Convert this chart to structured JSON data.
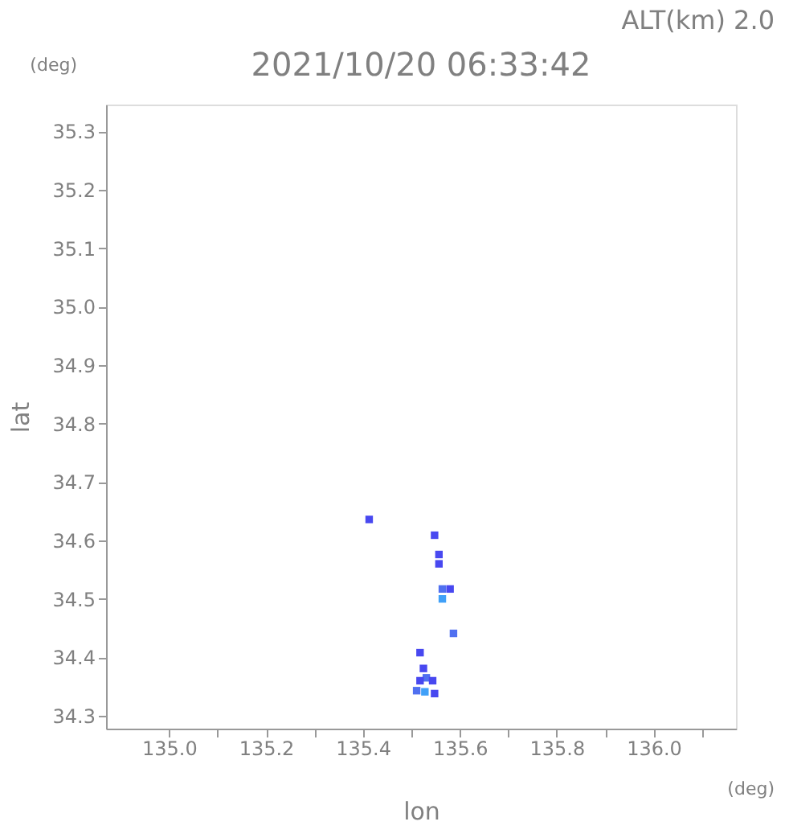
{
  "chart_data": {
    "type": "scatter",
    "title": "2021/10/20 06:33:42",
    "xlabel": "lon",
    "ylabel": "lat",
    "annotations": [
      "ALT(km) 2.0",
      "(deg)",
      "(deg)"
    ],
    "x": [
      135.413,
      135.548,
      135.557,
      135.557,
      135.564,
      135.58,
      135.564,
      135.587,
      135.518,
      135.525,
      135.531,
      135.518,
      135.544,
      135.511,
      135.528,
      135.548
    ],
    "values": [
      34.636,
      34.609,
      34.576,
      34.56,
      34.517,
      34.517,
      34.5,
      34.441,
      34.408,
      34.381,
      34.365,
      34.36,
      34.36,
      34.343,
      34.341,
      34.338
    ],
    "colors": [
      "#4848f0",
      "#4848f0",
      "#4848f0",
      "#4848f0",
      "#5070f0",
      "#4848f0",
      "#40a0f8",
      "#5070f0",
      "#4848f0",
      "#4848f0",
      "#5070f0",
      "#4848f0",
      "#4848f0",
      "#5070f0",
      "#40a0f8",
      "#4848f0"
    ],
    "marker": "square",
    "xlim": [
      134.87,
      136.17
    ],
    "ylim": [
      34.278,
      35.346
    ],
    "xticks": [
      {
        "value": 135.0,
        "label": "135.0"
      },
      {
        "value": 135.1,
        "label": null
      },
      {
        "value": 135.2,
        "label": "135.2"
      },
      {
        "value": 135.3,
        "label": null
      },
      {
        "value": 135.4,
        "label": "135.4"
      },
      {
        "value": 135.5,
        "label": null
      },
      {
        "value": 135.6,
        "label": "135.6"
      },
      {
        "value": 135.7,
        "label": null
      },
      {
        "value": 135.8,
        "label": "135.8"
      },
      {
        "value": 135.9,
        "label": null
      },
      {
        "value": 136.0,
        "label": "136.0"
      },
      {
        "value": 136.1,
        "label": null
      }
    ],
    "yticks": [
      34.3,
      34.4,
      34.5,
      34.6,
      34.7,
      34.8,
      34.9,
      {
        "value": 35.0,
        "label": "35.0"
      },
      35.1,
      35.2,
      35.3
    ],
    "grid": false
  }
}
